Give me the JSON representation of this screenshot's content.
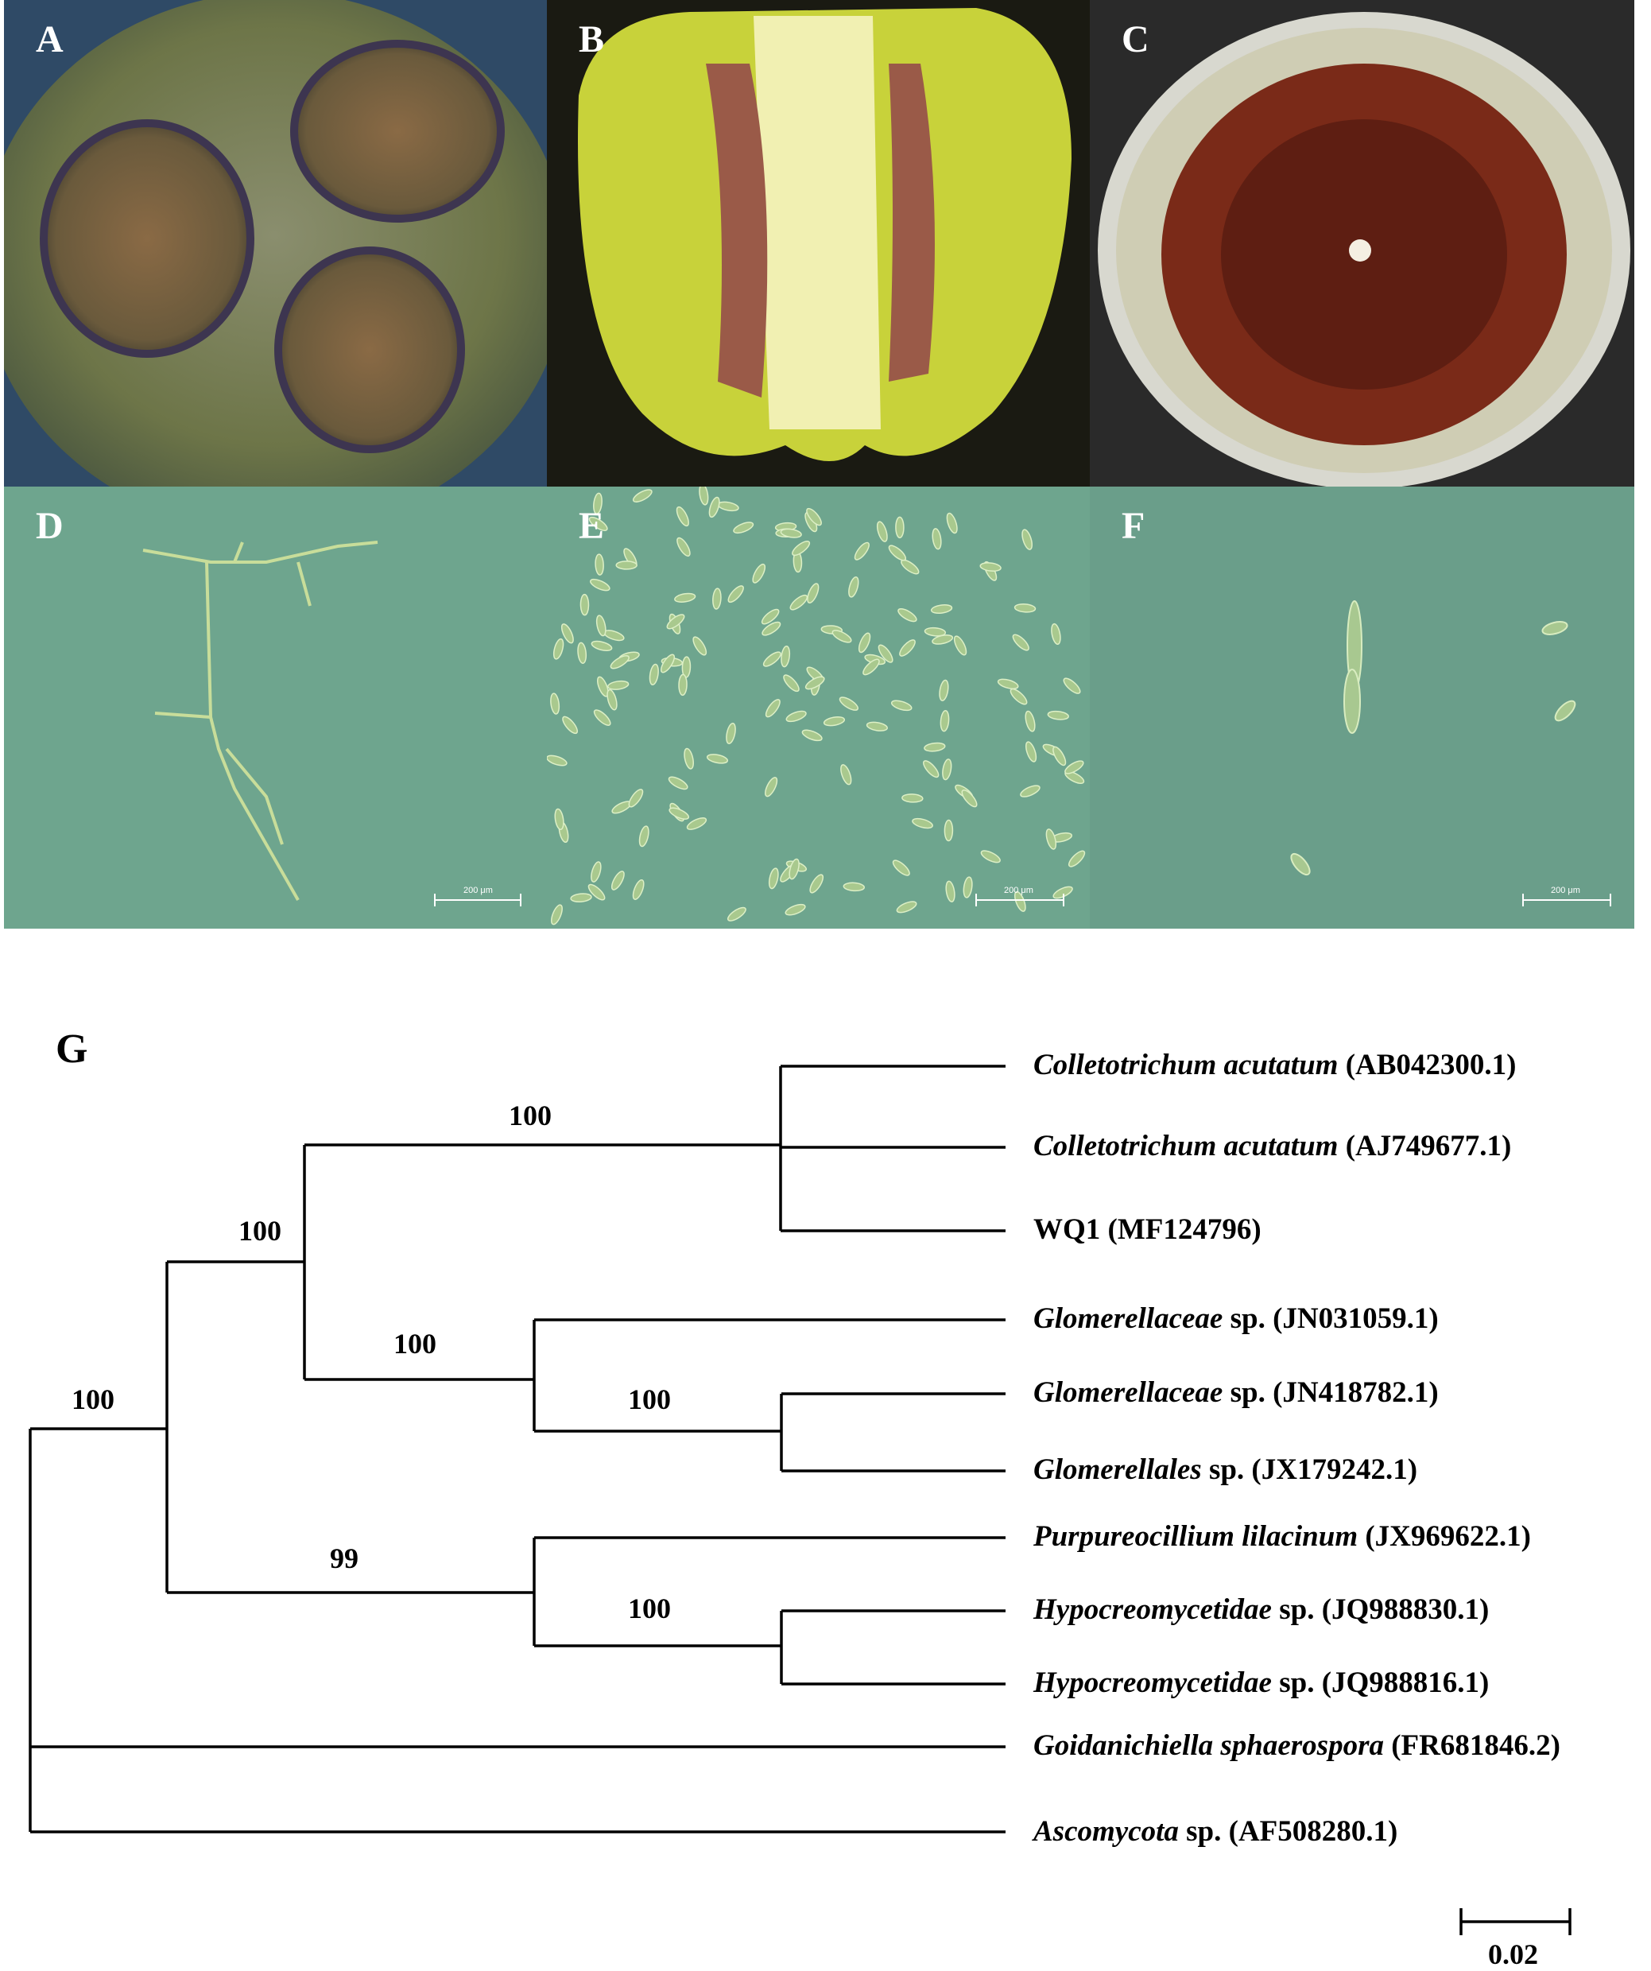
{
  "panels": {
    "a": "A",
    "b": "B",
    "c": "C",
    "d": "D",
    "e": "E",
    "f": "F",
    "g": "G"
  },
  "micro_scale_label": "200 μm",
  "tree": {
    "taxa": [
      {
        "genus": "Colletotrichum acutatum",
        "rest": " (AB042300.1)"
      },
      {
        "genus": "Colletotrichum acutatum",
        "rest": " (AJ749677.1)"
      },
      {
        "genus": "",
        "rest": "WQ1 (MF124796)"
      },
      {
        "genus": "Glomerellaceae",
        "rest": " sp. (JN031059.1)"
      },
      {
        "genus": "Glomerellaceae",
        "rest": " sp. (JN418782.1)"
      },
      {
        "genus": "Glomerellales",
        "rest": " sp. (JX179242.1)"
      },
      {
        "genus": "Purpureocillium lilacinum",
        "rest": " (JX969622.1)"
      },
      {
        "genus": "Hypocreomycetidae",
        "rest": " sp. (JQ988830.1)"
      },
      {
        "genus": "Hypocreomycetidae",
        "rest": " sp. (JQ988816.1)"
      },
      {
        "genus": "Goidanichiella sphaerospora",
        "rest": " (FR681846.2)"
      },
      {
        "genus": "Ascomycota",
        "rest": " sp. (AF508280.1)"
      }
    ],
    "bootstrap": [
      "100",
      "100",
      "100",
      "100",
      "100",
      "99",
      "100"
    ],
    "scale_label": "0.02"
  }
}
